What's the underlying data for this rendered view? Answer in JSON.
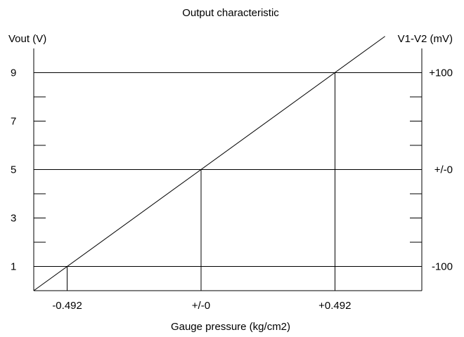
{
  "chart_data": {
    "type": "line",
    "title": "Output characteristic",
    "xlabel": "Gauge pressure (kg/cm2)",
    "ylabel_left": "Vout (V)",
    "ylabel_right": "V1-V2 (mV)",
    "xlim": [
      -0.615,
      0.8118
    ],
    "ylim_left": [
      0,
      10
    ],
    "ylim_right": [
      -125,
      125
    ],
    "x_ticks": [
      {
        "value": -0.492,
        "label": "-0.492"
      },
      {
        "value": 0,
        "label": "+/-0"
      },
      {
        "value": 0.492,
        "label": "+0.492"
      }
    ],
    "y_left_ticks": [
      {
        "value": 1,
        "label": "1"
      },
      {
        "value": 3,
        "label": "3"
      },
      {
        "value": 5,
        "label": "5"
      },
      {
        "value": 7,
        "label": "7"
      },
      {
        "value": 9,
        "label": "9"
      }
    ],
    "y_left_minor": [
      2,
      4,
      6,
      8
    ],
    "y_right_ticks": [
      {
        "value": -100,
        "label": "-100"
      },
      {
        "value": 0,
        "label": "+/-0"
      },
      {
        "value": 100,
        "label": "+100"
      }
    ],
    "y_right_minor": [
      -75,
      -50,
      -25,
      25,
      50,
      75
    ],
    "series": [
      {
        "x": [
          -0.615,
          0.6765
        ],
        "y": [
          0,
          10.5
        ]
      }
    ],
    "reference_points": [
      {
        "x": -0.492,
        "y": 1
      },
      {
        "x": 0,
        "y": 5
      },
      {
        "x": 0.492,
        "y": 9
      }
    ]
  }
}
